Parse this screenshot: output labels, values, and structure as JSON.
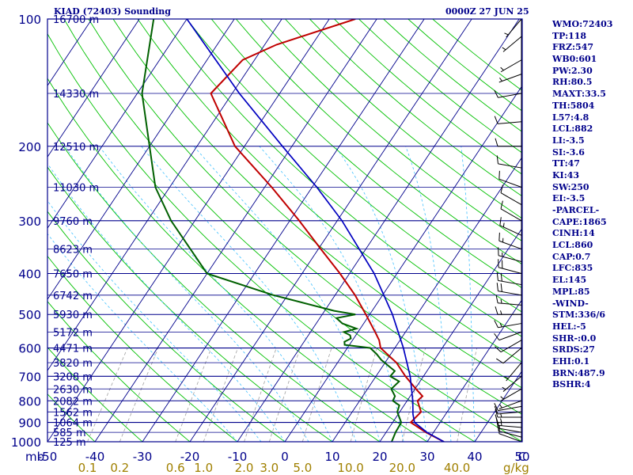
{
  "header": {
    "title": "KIAD (72403) Sounding",
    "time": "0000Z 27 JUN 25"
  },
  "indices": [
    "WMO:72403",
    "TP:118",
    "FRZ:547",
    "WB0:601",
    "PW:2.30",
    "RH:80.5",
    "MAXT:33.5",
    "TH:5804",
    "L57:4.8",
    "LCL:882",
    "LI:-3.5",
    "SI:-3.6",
    "TT:47",
    "KI:43",
    "SW:250",
    "EI:-3.5",
    "-PARCEL-",
    "CAPE:1865",
    "CINH:14",
    "LCL:860",
    "CAP:0.7",
    "LFC:835",
    "EL:145",
    "MPL:85",
    "-WIND-",
    "STM:336/6",
    "HEL:-5",
    "SHR-:0.0",
    "SRDS:27",
    "EHI:0.1",
    "BRN:487.9",
    "BSHR:4"
  ],
  "colors": {
    "axes": "#00008b",
    "isotherm": "#00008b",
    "isobar": "#00008b",
    "dry_adiabat": "#00c000",
    "moist_adiabat": "#40c0ff",
    "mixing_ratio": "#a0a0a0",
    "temperature": "#c00000",
    "dewpoint": "#006000",
    "parcel": "#0000c0",
    "mixing_ratio_labels": "#a08000",
    "wind_barbs": "#000000"
  },
  "chart_data": {
    "type": "line",
    "chart_kind": "skew-T log-P sounding",
    "pressure_unit": "mb",
    "temperature_unit": "°C",
    "mixing_ratio_unit": "g/kg",
    "pressure_ticks": [
      1000,
      900,
      800,
      700,
      600,
      500,
      400,
      300,
      200,
      100
    ],
    "pressure_tick_labels": [
      "1000",
      "900",
      "800",
      "700",
      "600",
      "500",
      "400",
      "300",
      "200",
      "100"
    ],
    "temperature_ticks": [
      -50,
      -40,
      -30,
      -20,
      -10,
      0,
      10,
      20,
      30,
      40,
      50
    ],
    "temperature_tick_labels": [
      "-50",
      "-40",
      "-30",
      "-20",
      "-10",
      "0",
      "10",
      "20",
      "30",
      "40",
      "50"
    ],
    "mixing_ratio_ticks": [
      0.1,
      0.2,
      0.6,
      1.0,
      2.0,
      3.0,
      5.0,
      10.0,
      20.0,
      40.0
    ],
    "mixing_ratio_tick_labels": [
      "0.1",
      "0.2",
      "0.6",
      "1.0",
      "2.0",
      "3.0",
      "5.0",
      "10.0",
      "20.0",
      "40.0"
    ],
    "xlabel_left": "mb",
    "xlabel_right": "C",
    "mixing_ratio_label": "g/kg",
    "ylim": [
      1000,
      100
    ],
    "xlim": [
      -50,
      50
    ],
    "heights": [
      {
        "p": 1000,
        "label": "125 m"
      },
      {
        "p": 950,
        "label": "585 m"
      },
      {
        "p": 900,
        "label": "1064 m"
      },
      {
        "p": 850,
        "label": "1562 m"
      },
      {
        "p": 800,
        "label": "2082 m"
      },
      {
        "p": 750,
        "label": "2630 m"
      },
      {
        "p": 700,
        "label": "3208 m"
      },
      {
        "p": 650,
        "label": "3820 m"
      },
      {
        "p": 600,
        "label": "4471 m"
      },
      {
        "p": 550,
        "label": "5172 m"
      },
      {
        "p": 500,
        "label": "5930 m"
      },
      {
        "p": 450,
        "label": "6742 m"
      },
      {
        "p": 400,
        "label": "7650 m"
      },
      {
        "p": 350,
        "label": "8623 m"
      },
      {
        "p": 300,
        "label": "9760 m"
      },
      {
        "p": 250,
        "label": "11030 m"
      },
      {
        "p": 200,
        "label": "12510 m"
      },
      {
        "p": 150,
        "label": "14330 m"
      },
      {
        "p": 100,
        "label": "16700 m"
      }
    ],
    "series": [
      {
        "key": "temperature",
        "points": [
          {
            "p": 1000,
            "t": 33.5
          },
          {
            "p": 950,
            "t": 28.4
          },
          {
            "p": 900,
            "t": 23.8
          },
          {
            "p": 850,
            "t": 24.5
          },
          {
            "p": 800,
            "t": 22.2
          },
          {
            "p": 780,
            "t": 22.6
          },
          {
            "p": 750,
            "t": 20.2
          },
          {
            "p": 700,
            "t": 16.2
          },
          {
            "p": 650,
            "t": 12.4
          },
          {
            "p": 600,
            "t": 7.0
          },
          {
            "p": 575,
            "t": 5.6
          },
          {
            "p": 550,
            "t": 3.6
          },
          {
            "p": 500,
            "t": -0.8
          },
          {
            "p": 450,
            "t": -5.8
          },
          {
            "p": 400,
            "t": -12.0
          },
          {
            "p": 350,
            "t": -19.5
          },
          {
            "p": 300,
            "t": -28.0
          },
          {
            "p": 250,
            "t": -38.5
          },
          {
            "p": 200,
            "t": -52.0
          },
          {
            "p": 150,
            "t": -64.5
          },
          {
            "p": 125,
            "t": -62.5
          },
          {
            "p": 115,
            "t": -57.5
          },
          {
            "p": 100,
            "t": -44.5
          }
        ]
      },
      {
        "key": "dewpoint",
        "points": [
          {
            "p": 1000,
            "t": 22.5
          },
          {
            "p": 950,
            "t": 22.0
          },
          {
            "p": 900,
            "t": 21.8
          },
          {
            "p": 850,
            "t": 19.5
          },
          {
            "p": 820,
            "t": 19.0
          },
          {
            "p": 800,
            "t": 17.0
          },
          {
            "p": 780,
            "t": 16.8
          },
          {
            "p": 750,
            "t": 15.0
          },
          {
            "p": 720,
            "t": 15.6
          },
          {
            "p": 700,
            "t": 13.0
          },
          {
            "p": 680,
            "t": 13.2
          },
          {
            "p": 660,
            "t": 11.0
          },
          {
            "p": 640,
            "t": 8.8
          },
          {
            "p": 620,
            "t": 7.0
          },
          {
            "p": 600,
            "t": 4.8
          },
          {
            "p": 590,
            "t": -1.0
          },
          {
            "p": 580,
            "t": -1.5
          },
          {
            "p": 570,
            "t": -0.6
          },
          {
            "p": 560,
            "t": -1.2
          },
          {
            "p": 550,
            "t": -3.0
          },
          {
            "p": 540,
            "t": -0.8
          },
          {
            "p": 525,
            "t": -4.5
          },
          {
            "p": 510,
            "t": -6.5
          },
          {
            "p": 500,
            "t": -3.0
          },
          {
            "p": 490,
            "t": -8.0
          },
          {
            "p": 450,
            "t": -23.0
          },
          {
            "p": 400,
            "t": -40.0
          },
          {
            "p": 300,
            "t": -55.0
          },
          {
            "p": 250,
            "t": -63.0
          },
          {
            "p": 200,
            "t": -70.0
          },
          {
            "p": 150,
            "t": -79.0
          },
          {
            "p": 100,
            "t": -87.0
          }
        ]
      },
      {
        "key": "parcel",
        "points": [
          {
            "p": 1000,
            "t": 33.5
          },
          {
            "p": 950,
            "t": 28.6
          },
          {
            "p": 900,
            "t": 24.6
          },
          {
            "p": 860,
            "t": 23.1
          },
          {
            "p": 800,
            "t": 21.2
          },
          {
            "p": 700,
            "t": 17.2
          },
          {
            "p": 600,
            "t": 11.8
          },
          {
            "p": 500,
            "t": 4.8
          },
          {
            "p": 400,
            "t": -4.8
          },
          {
            "p": 300,
            "t": -19.0
          },
          {
            "p": 250,
            "t": -29.0
          },
          {
            "p": 200,
            "t": -42.0
          },
          {
            "p": 150,
            "t": -58.5
          },
          {
            "p": 100,
            "t": -80.0
          }
        ]
      }
    ],
    "winds": [
      {
        "p": 1000,
        "dir": 290,
        "spd": 10
      },
      {
        "p": 975,
        "dir": 285,
        "spd": 10
      },
      {
        "p": 950,
        "dir": 280,
        "spd": 10
      },
      {
        "p": 925,
        "dir": 275,
        "spd": 15
      },
      {
        "p": 900,
        "dir": 270,
        "spd": 15
      },
      {
        "p": 875,
        "dir": 270,
        "spd": 15
      },
      {
        "p": 850,
        "dir": 265,
        "spd": 10
      },
      {
        "p": 825,
        "dir": 260,
        "spd": 10
      },
      {
        "p": 800,
        "dir": 250,
        "spd": 5
      },
      {
        "p": 750,
        "dir": 240,
        "spd": 5
      },
      {
        "p": 700,
        "dir": 230,
        "spd": 5
      },
      {
        "p": 650,
        "dir": 220,
        "spd": 5
      },
      {
        "p": 600,
        "dir": 230,
        "spd": 10
      },
      {
        "p": 575,
        "dir": 240,
        "spd": 10
      },
      {
        "p": 550,
        "dir": 250,
        "spd": 10
      },
      {
        "p": 525,
        "dir": 260,
        "spd": 15
      },
      {
        "p": 500,
        "dir": 270,
        "spd": 15
      },
      {
        "p": 475,
        "dir": 275,
        "spd": 15
      },
      {
        "p": 450,
        "dir": 280,
        "spd": 20
      },
      {
        "p": 425,
        "dir": 280,
        "spd": 20
      },
      {
        "p": 400,
        "dir": 285,
        "spd": 20
      },
      {
        "p": 375,
        "dir": 285,
        "spd": 15
      },
      {
        "p": 350,
        "dir": 290,
        "spd": 15
      },
      {
        "p": 325,
        "dir": 295,
        "spd": 15
      },
      {
        "p": 300,
        "dir": 300,
        "spd": 10
      },
      {
        "p": 275,
        "dir": 300,
        "spd": 10
      },
      {
        "p": 250,
        "dir": 290,
        "spd": 10
      },
      {
        "p": 225,
        "dir": 280,
        "spd": 10
      },
      {
        "p": 200,
        "dir": 270,
        "spd": 10
      },
      {
        "p": 175,
        "dir": 265,
        "spd": 10
      },
      {
        "p": 150,
        "dir": 260,
        "spd": 10
      },
      {
        "p": 135,
        "dir": 250,
        "spd": 5
      },
      {
        "p": 125,
        "dir": 240,
        "spd": 5
      },
      {
        "p": 110,
        "dir": 230,
        "spd": 5
      },
      {
        "p": 100,
        "dir": 220,
        "spd": 5
      }
    ]
  }
}
